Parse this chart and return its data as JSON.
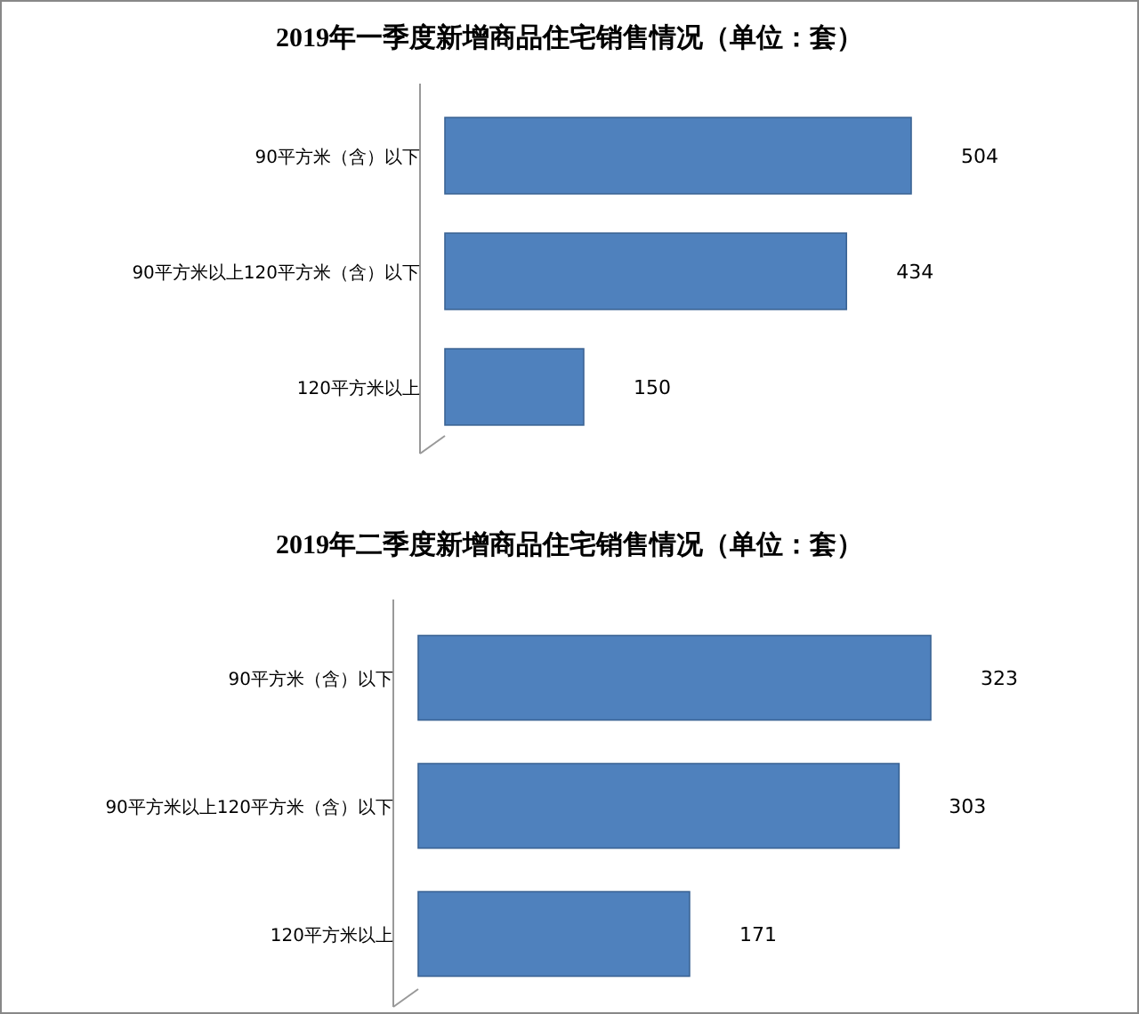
{
  "chart_data": [
    {
      "type": "bar",
      "orientation": "horizontal",
      "title": "2019年一季度新增商品住宅销售情况（单位：套）",
      "categories": [
        "90平方米（含）以下",
        "90平方米以上120平方米（含）以下",
        "120平方米以上"
      ],
      "values": [
        504,
        434,
        150
      ],
      "color": "#4f81bd",
      "data_labels": true
    },
    {
      "type": "bar",
      "orientation": "horizontal",
      "title": "2019年二季度新增商品住宅销售情况（单位：套）",
      "categories": [
        "90平方米（含）以下",
        "90平方米以上120平方米（含）以下",
        "120平方米以上"
      ],
      "values": [
        323,
        303,
        171
      ],
      "color": "#4f81bd",
      "data_labels": true
    }
  ]
}
